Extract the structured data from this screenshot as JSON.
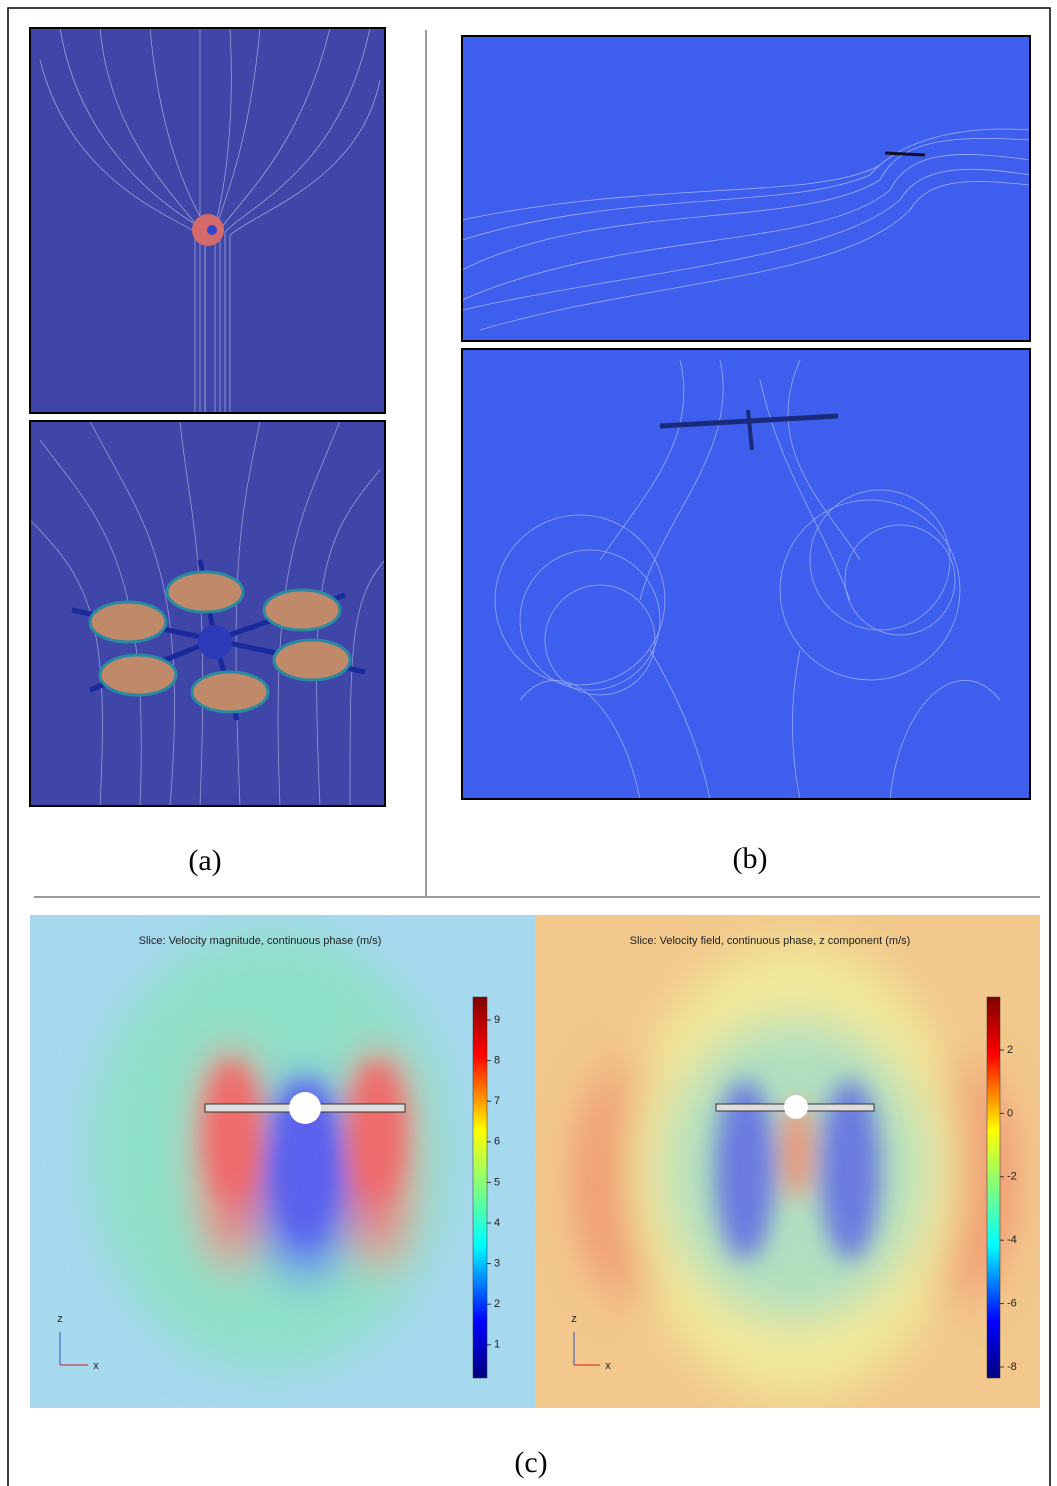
{
  "panels": {
    "a": {
      "label": "(a)"
    },
    "b": {
      "label": "(b)"
    },
    "c": {
      "label": "(c)",
      "left": {
        "title": "Slice: Velocity magnitude, continuous phase (m/s)",
        "colorbar_ticks": [
          9,
          8,
          7,
          6,
          5,
          4,
          3,
          2,
          1
        ],
        "axis_labels": [
          "z",
          "x"
        ]
      },
      "right": {
        "title": "Slice: Velocity field, continuous phase, z component (m/s)",
        "colorbar_ticks": [
          2,
          0,
          -2,
          -4,
          -6,
          -8
        ],
        "axis_labels": [
          "z",
          "x"
        ]
      }
    }
  }
}
